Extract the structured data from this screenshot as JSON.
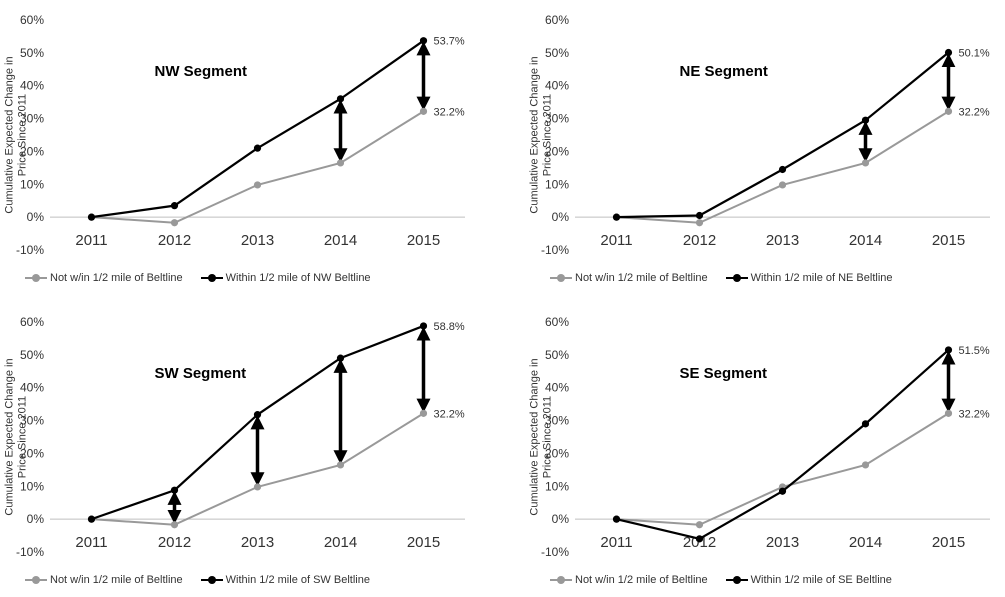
{
  "colors": {
    "not_within": "#999999",
    "within": "#000000",
    "arrow": "#000000",
    "axis": "#bfbfbf"
  },
  "chart_data": [
    {
      "type": "line",
      "title": "NW Segment",
      "ylabel": "Cumulative Expected Change in\nPrice Since 2011",
      "categories": [
        "2011",
        "2012",
        "2013",
        "2014",
        "2015"
      ],
      "ylim": [
        -0.1,
        0.6
      ],
      "yticks": [
        "-10%",
        "0%",
        "10%",
        "20%",
        "30%",
        "40%",
        "50%",
        "60%"
      ],
      "series": [
        {
          "name": "Not w/in 1/2 mile of Beltline",
          "color": "#999999",
          "values": [
            0.0,
            -0.017,
            0.098,
            0.165,
            0.322
          ]
        },
        {
          "name": "Within 1/2 mile of NW Beltline",
          "color": "#000000",
          "values": [
            0.0,
            0.035,
            0.21,
            0.36,
            0.537
          ]
        }
      ],
      "end_labels": {
        "within": "53.7%",
        "not_within": "32.2%"
      },
      "arrows": [
        {
          "category": "2014",
          "from": 0.165,
          "to": 0.36
        },
        {
          "category": "2015",
          "from": 0.322,
          "to": 0.537
        }
      ]
    },
    {
      "type": "line",
      "title": "NE Segment",
      "ylabel": "Cumulative Expected Change in\nPrice Since 2011",
      "categories": [
        "2011",
        "2012",
        "2013",
        "2014",
        "2015"
      ],
      "ylim": [
        -0.1,
        0.6
      ],
      "yticks": [
        "-10%",
        "0%",
        "10%",
        "20%",
        "30%",
        "40%",
        "50%",
        "60%"
      ],
      "series": [
        {
          "name": "Not w/in 1/2 mile of Beltline",
          "color": "#999999",
          "values": [
            0.0,
            -0.017,
            0.098,
            0.165,
            0.322
          ]
        },
        {
          "name": "Within 1/2 mile of NE Beltline",
          "color": "#000000",
          "values": [
            0.0,
            0.005,
            0.145,
            0.295,
            0.501
          ]
        }
      ],
      "end_labels": {
        "within": "50.1%",
        "not_within": "32.2%"
      },
      "arrows": [
        {
          "category": "2014",
          "from": 0.165,
          "to": 0.295
        },
        {
          "category": "2015",
          "from": 0.322,
          "to": 0.501
        }
      ]
    },
    {
      "type": "line",
      "title": "SW Segment",
      "ylabel": "Cumulative Expected Change in\nPrice Since 2011",
      "categories": [
        "2011",
        "2012",
        "2013",
        "2014",
        "2015"
      ],
      "ylim": [
        -0.1,
        0.6
      ],
      "yticks": [
        "-10%",
        "0%",
        "10%",
        "20%",
        "30%",
        "40%",
        "50%",
        "60%"
      ],
      "series": [
        {
          "name": "Not w/in 1/2 mile of Beltline",
          "color": "#999999",
          "values": [
            0.0,
            -0.017,
            0.098,
            0.165,
            0.322
          ]
        },
        {
          "name": "Within 1/2 mile of SW Beltline",
          "color": "#000000",
          "values": [
            0.0,
            0.088,
            0.318,
            0.49,
            0.588
          ]
        }
      ],
      "end_labels": {
        "within": "58.8%",
        "not_within": "32.2%"
      },
      "arrows": [
        {
          "category": "2012",
          "from": -0.017,
          "to": 0.088
        },
        {
          "category": "2013",
          "from": 0.098,
          "to": 0.318
        },
        {
          "category": "2014",
          "from": 0.165,
          "to": 0.49
        },
        {
          "category": "2015",
          "from": 0.322,
          "to": 0.588
        }
      ]
    },
    {
      "type": "line",
      "title": "SE Segment",
      "ylabel": "Cumulative Expected Change in\nPrice Since 2011",
      "categories": [
        "2011",
        "2012",
        "2013",
        "2014",
        "2015"
      ],
      "ylim": [
        -0.1,
        0.6
      ],
      "yticks": [
        "-10%",
        "0%",
        "10%",
        "20%",
        "30%",
        "40%",
        "50%",
        "60%"
      ],
      "series": [
        {
          "name": "Not w/in 1/2 mile of Beltline",
          "color": "#999999",
          "values": [
            0.0,
            -0.017,
            0.098,
            0.165,
            0.322
          ]
        },
        {
          "name": "Within 1/2 mile of SE Beltline",
          "color": "#000000",
          "values": [
            0.0,
            -0.06,
            0.085,
            0.29,
            0.515
          ]
        }
      ],
      "end_labels": {
        "within": "51.5%",
        "not_within": "32.2%"
      },
      "arrows": [
        {
          "category": "2015",
          "from": 0.322,
          "to": 0.515
        }
      ]
    }
  ]
}
